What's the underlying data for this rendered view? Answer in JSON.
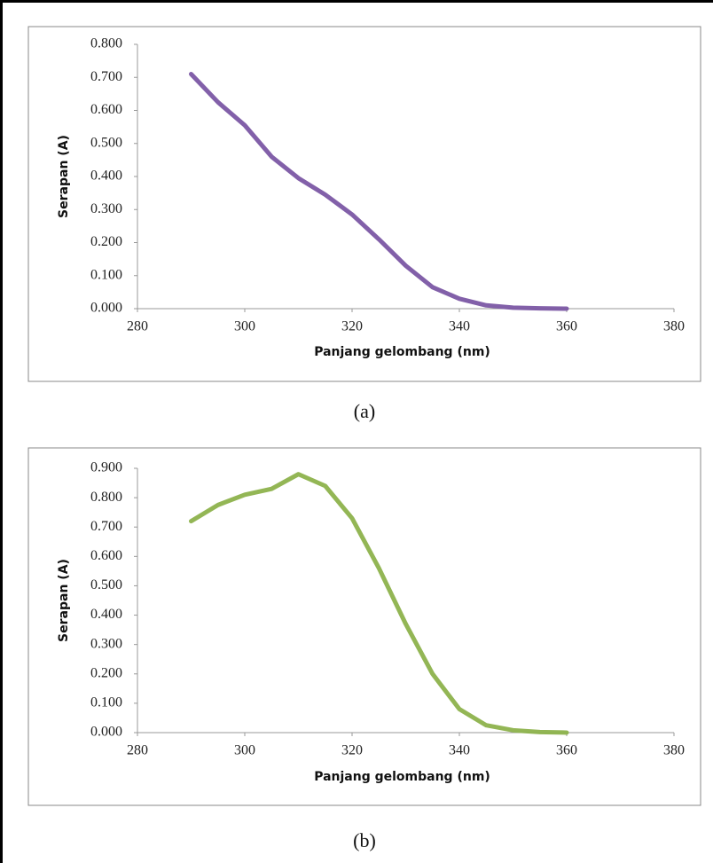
{
  "chart_data": [
    {
      "type": "line",
      "caption": "(a)",
      "x_label": "Panjang gelombang (nm)",
      "y_label": "Serapan (A)",
      "x": [
        290,
        295,
        300,
        305,
        310,
        315,
        320,
        325,
        330,
        335,
        340,
        345,
        350,
        355,
        360
      ],
      "series": [
        {
          "color": "#7b57a4",
          "values": [
            0.71,
            0.625,
            0.555,
            0.46,
            0.395,
            0.345,
            0.285,
            0.21,
            0.13,
            0.065,
            0.03,
            0.01,
            0.003,
            0.001,
            0.0
          ]
        }
      ],
      "xlim": [
        280,
        380
      ],
      "xticks": [
        280,
        300,
        320,
        340,
        360,
        380
      ],
      "ylim": [
        0,
        0.8
      ],
      "yticks": [
        {
          "value": 0,
          "label": "0.000"
        },
        {
          "value": 0.1,
          "label": "0.100"
        },
        {
          "value": 0.2,
          "label": "0.200"
        },
        {
          "value": 0.3,
          "label": "0.300"
        },
        {
          "value": 0.4,
          "label": "0.400"
        },
        {
          "value": 0.5,
          "label": "0.500"
        },
        {
          "value": 0.6,
          "label": "0.600"
        },
        {
          "value": 0.7,
          "label": "0.700"
        },
        {
          "value": 0.8,
          "label": "0.800"
        }
      ],
      "grid": false
    },
    {
      "type": "line",
      "caption": "(b)",
      "x_label": "Panjang gelombang (nm)",
      "y_label": "Serapan (A)",
      "x": [
        290,
        295,
        300,
        305,
        310,
        315,
        320,
        325,
        330,
        335,
        340,
        345,
        350,
        355,
        360
      ],
      "series": [
        {
          "color": "#8db24c",
          "values": [
            0.72,
            0.775,
            0.81,
            0.83,
            0.88,
            0.84,
            0.73,
            0.56,
            0.37,
            0.2,
            0.08,
            0.025,
            0.008,
            0.002,
            0.0
          ]
        }
      ],
      "xlim": [
        280,
        380
      ],
      "xticks": [
        280,
        300,
        320,
        340,
        360,
        380
      ],
      "ylim": [
        0,
        0.9
      ],
      "yticks": [
        {
          "value": 0,
          "label": "0.000"
        },
        {
          "value": 0.1,
          "label": "0.100"
        },
        {
          "value": 0.2,
          "label": "0.200"
        },
        {
          "value": 0.3,
          "label": "0.300"
        },
        {
          "value": 0.4,
          "label": "0.400"
        },
        {
          "value": 0.5,
          "label": "0.500"
        },
        {
          "value": 0.6,
          "label": "0.600"
        },
        {
          "value": 0.7,
          "label": "0.700"
        },
        {
          "value": 0.8,
          "label": "0.800"
        },
        {
          "value": 0.9,
          "label": "0.900"
        }
      ],
      "grid": false
    }
  ]
}
